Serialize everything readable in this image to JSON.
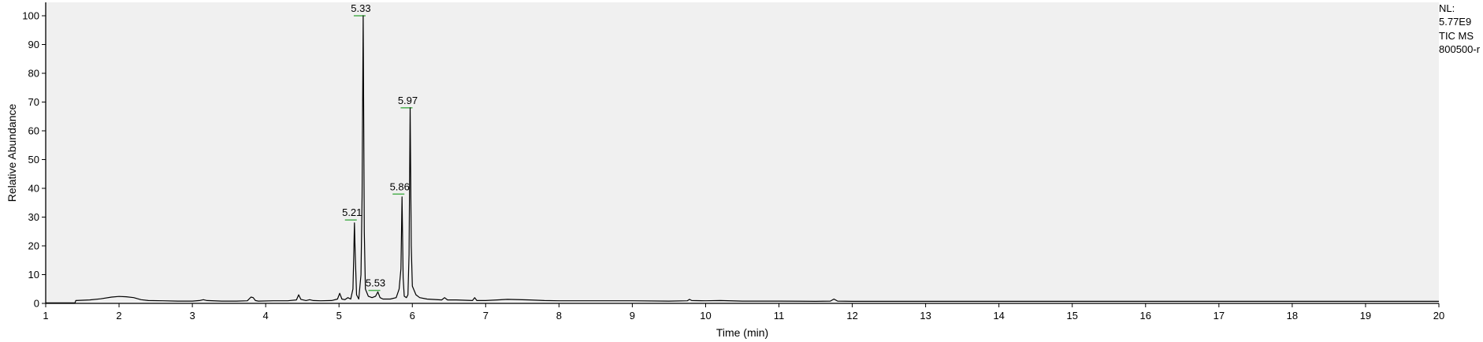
{
  "chart_data": {
    "type": "line",
    "title": "",
    "xlabel": "Time (min)",
    "ylabel": "Relative Abundance",
    "xlim": [
      1,
      20
    ],
    "ylim": [
      0,
      100
    ],
    "x_ticks": [
      "1",
      "2",
      "3",
      "4",
      "5",
      "6",
      "7",
      "8",
      "9",
      "10",
      "11",
      "12",
      "13",
      "14",
      "15",
      "16",
      "17",
      "18",
      "19",
      "20"
    ],
    "y_ticks": [
      "0",
      "10",
      "20",
      "30",
      "40",
      "50",
      "60",
      "70",
      "80",
      "90",
      "100"
    ],
    "grid": false,
    "peak_labels": [
      {
        "x": 5.21,
        "y": 29,
        "label": "5.21"
      },
      {
        "x": 5.33,
        "y": 100,
        "label": "5.33"
      },
      {
        "x": 5.53,
        "y": 4.5,
        "label": "5.53"
      },
      {
        "x": 5.86,
        "y": 38,
        "label": "5.86"
      },
      {
        "x": 5.97,
        "y": 68,
        "label": "5.97"
      }
    ],
    "series": [
      {
        "color": "#000000",
        "x": [
          1.0,
          1.4,
          1.41,
          1.6,
          1.75,
          1.9,
          2.0,
          2.1,
          2.2,
          2.3,
          2.4,
          2.6,
          2.8,
          3.0,
          3.1,
          3.15,
          3.2,
          3.4,
          3.6,
          3.75,
          3.8,
          3.83,
          3.86,
          3.9,
          4.1,
          4.3,
          4.42,
          4.45,
          4.48,
          4.55,
          4.6,
          4.65,
          4.75,
          4.9,
          4.98,
          5.01,
          5.04,
          5.08,
          5.12,
          5.16,
          5.19,
          5.2,
          5.21,
          5.22,
          5.24,
          5.27,
          5.3,
          5.315,
          5.33,
          5.345,
          5.36,
          5.4,
          5.45,
          5.5,
          5.53,
          5.56,
          5.6,
          5.7,
          5.78,
          5.82,
          5.845,
          5.86,
          5.875,
          5.89,
          5.92,
          5.94,
          5.955,
          5.97,
          5.985,
          6.0,
          6.05,
          6.1,
          6.2,
          6.4,
          6.44,
          6.48,
          6.6,
          6.82,
          6.85,
          6.88,
          7.0,
          7.3,
          7.6,
          7.8,
          8.0,
          8.5,
          9.0,
          9.5,
          9.75,
          9.78,
          9.81,
          10.0,
          10.2,
          10.5,
          11.0,
          11.5,
          11.7,
          11.75,
          11.8,
          12.0,
          13.0,
          14.0,
          15.0,
          16.0,
          17.0,
          18.0,
          19.0,
          20.0
        ],
        "y": [
          0.2,
          0.2,
          1.0,
          1.2,
          1.6,
          2.2,
          2.4,
          2.3,
          2.0,
          1.3,
          1.0,
          0.9,
          0.8,
          0.8,
          1.0,
          1.3,
          1.0,
          0.8,
          0.8,
          0.9,
          2.2,
          2.0,
          1.0,
          0.8,
          0.9,
          0.9,
          1.2,
          3.0,
          1.4,
          1.0,
          1.3,
          1.0,
          0.9,
          1.0,
          1.5,
          3.5,
          1.5,
          1.3,
          2.0,
          1.5,
          5.0,
          15.0,
          28.0,
          18.0,
          3.0,
          1.5,
          10.0,
          37.0,
          100.0,
          25.0,
          5.0,
          2.5,
          2.0,
          2.5,
          4.0,
          2.0,
          1.5,
          1.5,
          2.0,
          5.0,
          12.0,
          37.0,
          9.0,
          2.5,
          2.0,
          3.0,
          17.0,
          68.0,
          20.0,
          6.0,
          3.0,
          2.0,
          1.5,
          1.2,
          2.0,
          1.2,
          1.2,
          1.0,
          2.0,
          1.0,
          1.0,
          1.4,
          1.2,
          1.0,
          0.9,
          0.9,
          0.9,
          0.8,
          0.9,
          1.4,
          1.0,
          0.9,
          1.0,
          0.8,
          0.8,
          0.7,
          0.8,
          1.5,
          0.8,
          0.7,
          0.7,
          0.7,
          0.7,
          0.7,
          0.7,
          0.7,
          0.7,
          0.7
        ]
      }
    ]
  },
  "side_notes": {
    "nl_label": "NL:",
    "nl_value": "5.77E9",
    "trace_type": "TIC  MS",
    "file_name": "800500-r"
  },
  "colors": {
    "plot_background": "#f0f0f0",
    "axis": "#000000",
    "peak_marker": "#4caf50"
  }
}
